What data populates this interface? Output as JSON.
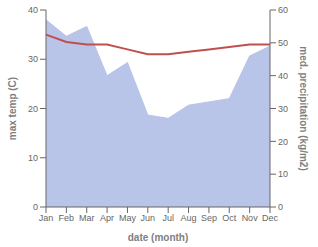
{
  "chart_data": {
    "type": "line",
    "xlabel": "date (month)",
    "ylabel": "max temp (C)",
    "y2label": "med. precipitation (kg/m2)",
    "categories": [
      "Jan",
      "Feb",
      "Mar",
      "Apr",
      "May",
      "Jun",
      "Jul",
      "Aug",
      "Sep",
      "Oct",
      "Nov",
      "Dec"
    ],
    "series": [
      {
        "type": "area",
        "axis": "y2",
        "color": "#b8c4e8",
        "values": [
          57.0,
          52.0,
          55.0,
          40.0,
          44.0,
          28.0,
          27.0,
          31.0,
          32.0,
          33.0,
          46.0,
          49.0
        ]
      },
      {
        "type": "line",
        "color": "#c0504d",
        "values": [
          35.0,
          33.5,
          33.0,
          33.0,
          32.0,
          31.0,
          31.0,
          31.5,
          32.0,
          32.5,
          33.0,
          33.0
        ]
      }
    ],
    "ylim": [
      0,
      40
    ],
    "yticks": [
      0,
      10,
      20,
      30,
      40
    ],
    "y2lim": [
      0,
      60
    ],
    "y2ticks": [
      0,
      10,
      20,
      30,
      40,
      50,
      60
    ],
    "grid": false
  }
}
